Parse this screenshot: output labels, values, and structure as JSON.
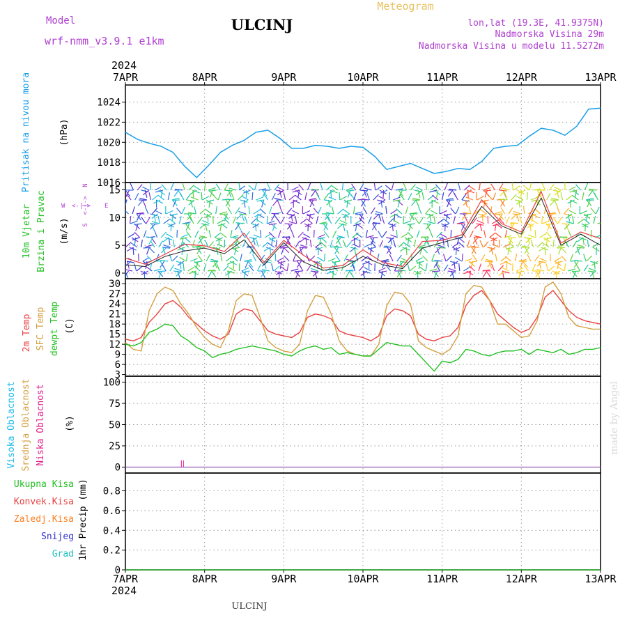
{
  "header": {
    "model_label": "Model",
    "model_name": "wrf-nmm_v3.9.1 e1km",
    "station": "ULCINJ",
    "product": "Meteogram",
    "location": "lon,lat (19.3E, 41.9375N)",
    "elevation": "Nadmorska Visina 29m",
    "model_elevation": "Nadmorska Visina u modelu 11.5272m",
    "bottom_station": "ULCINJ",
    "watermark": "made by Angel"
  },
  "colors": {
    "pressure": "#1a9fe8",
    "temp2m": "#e84040",
    "sfc_temp": "#d4a040",
    "dewpoint": "#22c022",
    "total_precip": "#22c022",
    "conv_precip": "#e84040",
    "frozen_precip": "#ff8020",
    "snow": "#3030d0",
    "hail": "#20c0c0",
    "high_cloud": "#1ab8e8",
    "mid_cloud": "#d4a040",
    "low_cloud": "#e0208a",
    "header_purple": "#b040d0",
    "header_gold": "#e8c060"
  },
  "time_axis": {
    "year": "2024",
    "ticks": [
      "7APR",
      "8APR",
      "9APR",
      "10APR",
      "11APR",
      "12APR",
      "13APR"
    ]
  },
  "wind_compass": {
    "n": "N",
    "s": "S",
    "w": "W",
    "e": "E"
  },
  "chart_data": [
    {
      "type": "line",
      "panel": "pressure",
      "ylabel_main": "Pritisak na nivou mora",
      "unit": "(hPa)",
      "ylim": [
        1016,
        1025.7
      ],
      "yticks": [
        1016,
        1018,
        1020,
        1022,
        1024
      ],
      "x": [
        0,
        0.15,
        0.3,
        0.45,
        0.6,
        0.75,
        0.9,
        1.05,
        1.2,
        1.35,
        1.5,
        1.65,
        1.8,
        1.95,
        2.1,
        2.25,
        2.4,
        2.55,
        2.7,
        2.85,
        3.0,
        3.15,
        3.3,
        3.45,
        3.6,
        3.75,
        3.9,
        4.05,
        4.2,
        4.35,
        4.5,
        4.65,
        4.8,
        4.95,
        5.1,
        5.25,
        5.4,
        5.55,
        5.7,
        5.85,
        6.0
      ],
      "values": [
        1021.0,
        1020.3,
        1019.9,
        1019.6,
        1019.0,
        1017.6,
        1016.5,
        1017.7,
        1019.0,
        1019.7,
        1020.2,
        1021.0,
        1021.2,
        1020.4,
        1019.4,
        1019.4,
        1019.7,
        1019.6,
        1019.4,
        1019.6,
        1019.5,
        1018.6,
        1017.3,
        1017.6,
        1017.9,
        1017.4,
        1016.9,
        1017.1,
        1017.4,
        1017.3,
        1018.1,
        1019.4,
        1019.6,
        1019.7,
        1020.6,
        1021.4,
        1021.2,
        1020.7,
        1021.6,
        1023.3,
        1023.4
      ]
    },
    {
      "type": "line",
      "panel": "wind",
      "ylabel_main": "10m Vjetar",
      "ylabel_sub": "Brzina i Pravac",
      "unit": "(m/s)",
      "ylim": [
        -1,
        16.3
      ],
      "yticks": [
        0,
        5,
        10,
        15
      ],
      "x": [
        0,
        0.25,
        0.5,
        0.75,
        1.0,
        1.25,
        1.5,
        1.75,
        2.0,
        2.25,
        2.5,
        2.75,
        3.0,
        3.25,
        3.5,
        3.75,
        4.0,
        4.25,
        4.5,
        4.75,
        5.0,
        5.25,
        5.5,
        5.75,
        6.0
      ],
      "values": [
        1.5,
        1.2,
        3.0,
        4.0,
        4.5,
        3.5,
        6.0,
        1.5,
        5.5,
        2.0,
        0.5,
        1.0,
        3.0,
        1.5,
        0.8,
        4.5,
        5.5,
        6.5,
        12.0,
        8.5,
        7.0,
        13.5,
        5.0,
        7.0,
        5.0
      ]
    },
    {
      "type": "line",
      "panel": "temperature",
      "ylabel_a": "2m Temp",
      "ylabel_b": "SFC Temp",
      "ylabel_c": "dewpt Temp",
      "unit": "(C)",
      "ylim": [
        2.5,
        31.5
      ],
      "yticks": [
        3,
        6,
        9,
        12,
        15,
        18,
        21,
        24,
        27,
        30
      ],
      "x": [
        0,
        0.1,
        0.2,
        0.3,
        0.4,
        0.5,
        0.6,
        0.7,
        0.8,
        0.9,
        1.0,
        1.1,
        1.2,
        1.3,
        1.4,
        1.5,
        1.6,
        1.7,
        1.8,
        1.9,
        2.0,
        2.1,
        2.2,
        2.3,
        2.4,
        2.5,
        2.6,
        2.7,
        2.8,
        2.9,
        3.0,
        3.1,
        3.2,
        3.3,
        3.4,
        3.5,
        3.6,
        3.7,
        3.8,
        3.9,
        4.0,
        4.1,
        4.2,
        4.3,
        4.4,
        4.5,
        4.6,
        4.7,
        4.8,
        4.9,
        5.0,
        5.1,
        5.2,
        5.3,
        5.4,
        5.5,
        5.6,
        5.7,
        5.8,
        5.9,
        6.0
      ],
      "series": [
        {
          "name": "2m Temp",
          "values": [
            13.5,
            13.0,
            14.0,
            18.5,
            21.0,
            24.0,
            25.0,
            23.0,
            20.0,
            18.0,
            16.0,
            14.5,
            13.5,
            15.0,
            21.0,
            22.5,
            22.0,
            19.0,
            16.0,
            15.0,
            14.5,
            14.0,
            15.5,
            20.0,
            21.0,
            20.5,
            19.5,
            16.0,
            15.0,
            14.5,
            14.0,
            13.0,
            14.5,
            20.5,
            22.5,
            22.0,
            20.5,
            15.0,
            13.5,
            13.0,
            14.0,
            14.5,
            17.0,
            23.5,
            26.5,
            28.0,
            25.0,
            21.0,
            19.0,
            17.0,
            15.5,
            16.5,
            20.0,
            26.0,
            28.0,
            25.0,
            22.0,
            20.0,
            19.0,
            18.5,
            18.0
          ]
        },
        {
          "name": "SFC Temp",
          "values": [
            12.5,
            10.5,
            10.0,
            22.0,
            27.0,
            29.0,
            28.0,
            24.0,
            21.0,
            17.0,
            14.0,
            12.0,
            11.0,
            16.0,
            25.0,
            27.0,
            26.5,
            20.0,
            13.0,
            11.0,
            10.0,
            9.5,
            12.0,
            22.0,
            26.5,
            26.0,
            21.0,
            13.0,
            10.0,
            9.0,
            8.5,
            8.5,
            12.0,
            23.5,
            27.5,
            27.0,
            24.0,
            13.0,
            11.0,
            10.0,
            9.0,
            10.5,
            14.5,
            27.0,
            29.5,
            29.0,
            25.0,
            18.0,
            18.0,
            16.0,
            14.0,
            14.5,
            19.0,
            29.0,
            30.5,
            27.0,
            20.0,
            17.5,
            17.0,
            16.5,
            16.5
          ]
        },
        {
          "name": "dewpt Temp",
          "values": [
            12.0,
            11.5,
            12.5,
            15.5,
            16.5,
            18.0,
            17.5,
            14.5,
            13.0,
            11.0,
            10.0,
            8.0,
            9.0,
            9.5,
            10.5,
            11.0,
            11.5,
            11.0,
            10.5,
            10.0,
            9.0,
            8.5,
            10.0,
            11.0,
            11.5,
            10.5,
            11.0,
            9.0,
            9.5,
            9.0,
            8.5,
            8.5,
            10.5,
            12.5,
            12.0,
            11.5,
            11.5,
            9.0,
            6.5,
            4.0,
            7.0,
            6.5,
            7.5,
            10.5,
            10.0,
            9.0,
            8.5,
            9.5,
            10.0,
            10.0,
            10.5,
            9.0,
            10.5,
            10.0,
            9.5,
            10.5,
            9.0,
            9.5,
            10.5,
            10.5,
            11.0
          ]
        }
      ]
    },
    {
      "type": "line",
      "panel": "cloud",
      "ylabel_a": "Visoka Oblacnost",
      "ylabel_b": "Srednja Oblacnost",
      "ylabel_c": "Niska Oblacnost",
      "unit": "(%)",
      "ylim": [
        -7,
        107
      ],
      "yticks": [
        0,
        25,
        50,
        75,
        100
      ],
      "x": [
        0,
        6
      ],
      "values": [
        0,
        0
      ],
      "marks": [
        {
          "x": 0.72,
          "value": 4
        }
      ]
    },
    {
      "type": "bar",
      "panel": "precip",
      "legend": [
        "Ukupna Kisa",
        "Konvek.Kisa",
        "Zaledj.Kisa",
        "Snijeg",
        "Grad"
      ],
      "unit": "1hr Precip (mm)",
      "ylim": [
        0,
        0.98
      ],
      "yticks": [
        0,
        0.2,
        0.4,
        0.6,
        0.8
      ],
      "x": [
        0,
        6
      ],
      "values": [
        0,
        0
      ]
    }
  ]
}
